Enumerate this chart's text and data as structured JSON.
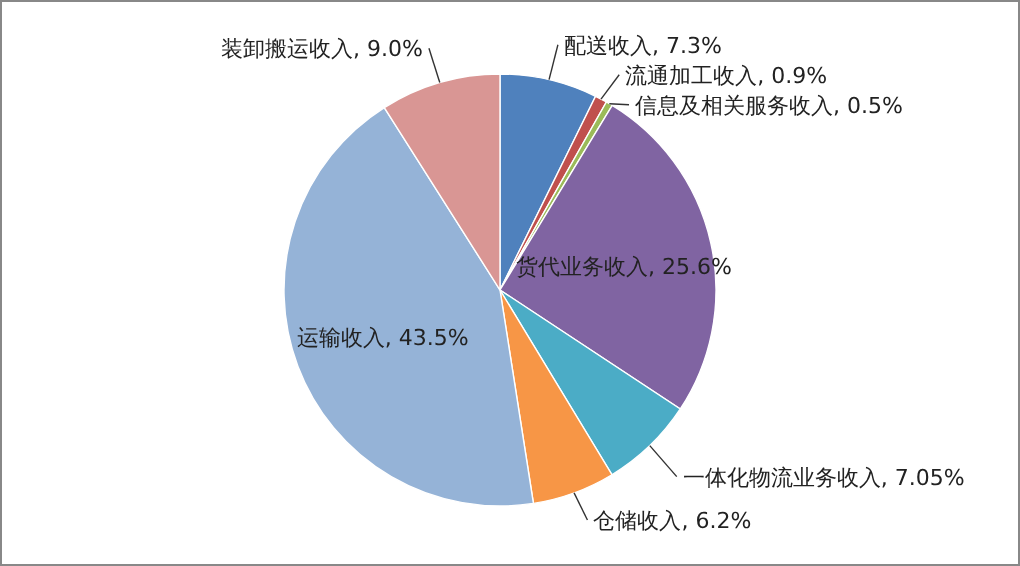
{
  "chart_data": {
    "type": "pie",
    "categories": [
      "配送收入",
      "流通加工收入",
      "信息及相关服务收入",
      "货代业务收入",
      "一体化物流业务收入",
      "仓储收入",
      "运输收入",
      "装卸搬运收入"
    ],
    "values": [
      7.3,
      0.9,
      0.5,
      25.6,
      7.05,
      6.2,
      43.5,
      9.0
    ],
    "value_labels": [
      "7.3%",
      "0.9%",
      "0.5%",
      "25.6%",
      "7.05%",
      "6.2%",
      "43.5%",
      "9.0%"
    ],
    "colors": [
      "#4f81bd",
      "#c0504d",
      "#9bbb59",
      "#8064a2",
      "#4bacc6",
      "#f79646",
      "#95b3d7",
      "#d99694"
    ]
  }
}
